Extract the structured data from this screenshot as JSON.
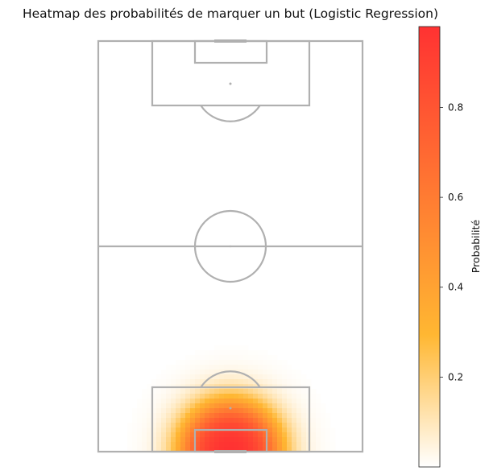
{
  "chart_data": {
    "type": "heatmap",
    "title": "Heatmap des probabilités de marquer un but (Logistic Regression)",
    "colorbar": {
      "label": "Probabilité",
      "range": [
        0.0,
        0.98
      ],
      "ticks": [
        0.2,
        0.4,
        0.6,
        0.8
      ],
      "tick_labels": [
        "0.2",
        "0.4",
        "0.6",
        "0.8"
      ],
      "colors": [
        "#ffffff",
        "#ffb732",
        "#ff3232"
      ]
    },
    "field": {
      "orientation": "vertical",
      "line_color": "#b0b0b0",
      "high_probability_zone": "bottom-goal"
    },
    "axis_visible": false,
    "grid": false
  }
}
